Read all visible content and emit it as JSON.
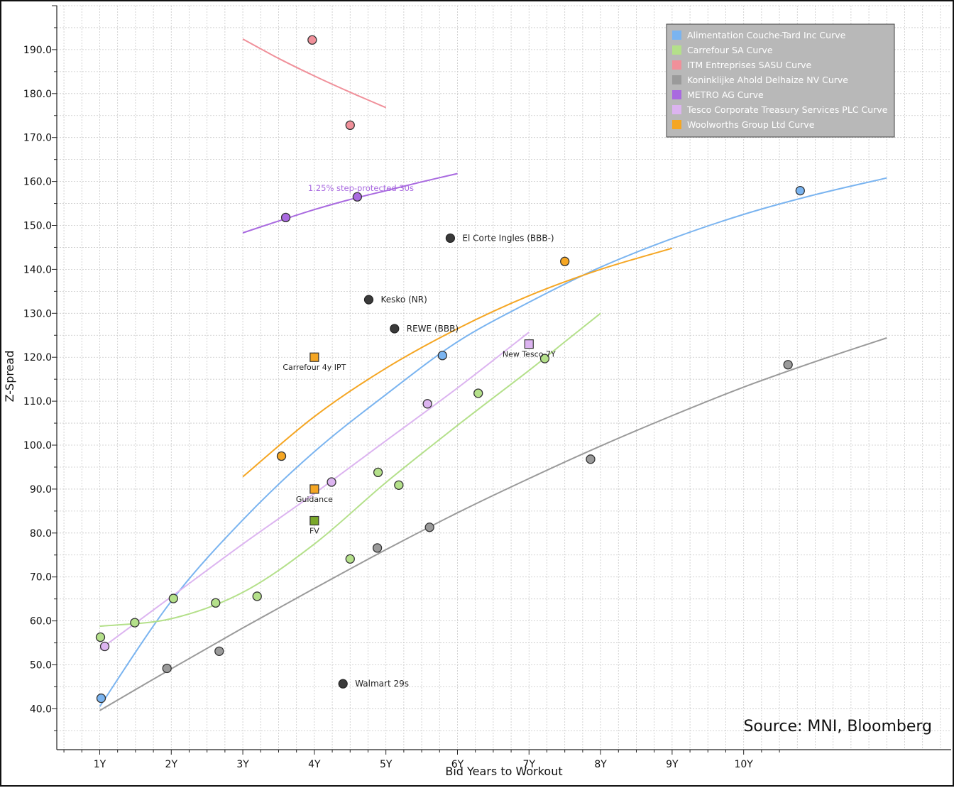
{
  "chart_data": {
    "type": "scatter",
    "title": "",
    "xlabel": "Bid Years to Workout",
    "ylabel": "Z-Spread",
    "source": "Source: MNI, Bloomberg",
    "xlim": [
      0.4,
      12.9
    ],
    "ylim": [
      30.7,
      200.0
    ],
    "x_ticks": [
      {
        "value": 1,
        "label": "1Y"
      },
      {
        "value": 2,
        "label": "2Y"
      },
      {
        "value": 3,
        "label": "3Y"
      },
      {
        "value": 4,
        "label": "4Y"
      },
      {
        "value": 5,
        "label": "5Y"
      },
      {
        "value": 6,
        "label": "6Y"
      },
      {
        "value": 7,
        "label": "7Y"
      },
      {
        "value": 8,
        "label": "8Y"
      },
      {
        "value": 9,
        "label": "9Y"
      },
      {
        "value": 10,
        "label": "10Y"
      }
    ],
    "y_ticks": [
      {
        "value": 40,
        "label": "40.0"
      },
      {
        "value": 50,
        "label": "50.0"
      },
      {
        "value": 60,
        "label": "60.0"
      },
      {
        "value": 70,
        "label": "70.0"
      },
      {
        "value": 80,
        "label": "80.0"
      },
      {
        "value": 90,
        "label": "90.0"
      },
      {
        "value": 100,
        "label": "100.0"
      },
      {
        "value": 110,
        "label": "110.0"
      },
      {
        "value": 120,
        "label": "120.0"
      },
      {
        "value": 130,
        "label": "130.0"
      },
      {
        "value": 140,
        "label": "140.0"
      },
      {
        "value": 150,
        "label": "150.0"
      },
      {
        "value": 160,
        "label": "160.0"
      },
      {
        "value": 170,
        "label": "170.0"
      },
      {
        "value": 180,
        "label": "180.0"
      },
      {
        "value": 190,
        "label": "190.0"
      }
    ],
    "grid": true,
    "legend_position": "top-right",
    "series": [
      {
        "name": "Alimentation Couche-Tard Inc Curve",
        "color": "#7ab4f0",
        "points": [
          {
            "x": 1.02,
            "y": 42.4
          },
          {
            "x": 5.79,
            "y": 120.4
          },
          {
            "x": 10.79,
            "y": 157.9
          }
        ],
        "curve": [
          {
            "x": 1.0,
            "y": 40.5
          },
          {
            "x": 2.0,
            "y": 64.5
          },
          {
            "x": 3.0,
            "y": 83.0
          },
          {
            "x": 4.0,
            "y": 98.5
          },
          {
            "x": 5.0,
            "y": 111.5
          },
          {
            "x": 6.0,
            "y": 123.5
          },
          {
            "x": 7.0,
            "y": 132.5
          },
          {
            "x": 8.0,
            "y": 140.5
          },
          {
            "x": 9.0,
            "y": 147.0
          },
          {
            "x": 10.0,
            "y": 152.5
          },
          {
            "x": 11.0,
            "y": 157.0
          },
          {
            "x": 12.0,
            "y": 160.8
          }
        ]
      },
      {
        "name": "Carrefour SA Curve",
        "color": "#b4e08a",
        "points": [
          {
            "x": 1.01,
            "y": 56.3
          },
          {
            "x": 1.49,
            "y": 59.6
          },
          {
            "x": 2.03,
            "y": 65.1
          },
          {
            "x": 2.62,
            "y": 64.1
          },
          {
            "x": 3.2,
            "y": 65.6
          },
          {
            "x": 4.5,
            "y": 74.1
          },
          {
            "x": 4.89,
            "y": 93.8
          },
          {
            "x": 5.18,
            "y": 90.9
          },
          {
            "x": 6.29,
            "y": 111.8
          },
          {
            "x": 7.22,
            "y": 119.7
          }
        ],
        "curve": [
          {
            "x": 1.0,
            "y": 58.8
          },
          {
            "x": 2.0,
            "y": 60.5
          },
          {
            "x": 3.0,
            "y": 66.5
          },
          {
            "x": 4.0,
            "y": 77.5
          },
          {
            "x": 5.0,
            "y": 91.5
          },
          {
            "x": 6.0,
            "y": 104.5
          },
          {
            "x": 7.0,
            "y": 117.0
          },
          {
            "x": 7.5,
            "y": 123.5
          },
          {
            "x": 8.0,
            "y": 130.0
          }
        ]
      },
      {
        "name": "ITM Entreprises SASU Curve",
        "color": "#f0909a",
        "points": [
          {
            "x": 3.97,
            "y": 192.2
          },
          {
            "x": 4.5,
            "y": 172.8
          }
        ],
        "curve": [
          {
            "x": 3.0,
            "y": 192.4
          },
          {
            "x": 3.5,
            "y": 188.0
          },
          {
            "x": 4.0,
            "y": 184.0
          },
          {
            "x": 4.5,
            "y": 180.3
          },
          {
            "x": 5.0,
            "y": 176.8
          }
        ]
      },
      {
        "name": "Koninklijke Ahold Delhaize NV Curve",
        "color": "#9a9a9a",
        "points": [
          {
            "x": 1.94,
            "y": 49.2
          },
          {
            "x": 2.67,
            "y": 53.1
          },
          {
            "x": 4.88,
            "y": 76.6
          },
          {
            "x": 5.61,
            "y": 81.3
          },
          {
            "x": 7.86,
            "y": 96.8
          },
          {
            "x": 10.62,
            "y": 118.3
          }
        ],
        "curve": [
          {
            "x": 1.0,
            "y": 39.6
          },
          {
            "x": 2.0,
            "y": 49.1
          },
          {
            "x": 3.0,
            "y": 58.4
          },
          {
            "x": 4.0,
            "y": 67.4
          },
          {
            "x": 5.0,
            "y": 76.2
          },
          {
            "x": 6.0,
            "y": 84.6
          },
          {
            "x": 7.0,
            "y": 92.4
          },
          {
            "x": 8.0,
            "y": 99.8
          },
          {
            "x": 9.0,
            "y": 106.7
          },
          {
            "x": 10.0,
            "y": 113.2
          },
          {
            "x": 11.0,
            "y": 119.0
          },
          {
            "x": 12.0,
            "y": 124.4
          }
        ]
      },
      {
        "name": "METRO AG Curve",
        "color": "#a96ae0",
        "points": [
          {
            "x": 3.6,
            "y": 151.8
          },
          {
            "x": 4.6,
            "y": 156.5
          }
        ],
        "curve": [
          {
            "x": 3.0,
            "y": 148.3
          },
          {
            "x": 3.5,
            "y": 151.0
          },
          {
            "x": 4.0,
            "y": 153.6
          },
          {
            "x": 4.5,
            "y": 155.9
          },
          {
            "x": 5.0,
            "y": 157.9
          },
          {
            "x": 5.5,
            "y": 159.9
          },
          {
            "x": 6.0,
            "y": 161.8
          }
        ]
      },
      {
        "name": "Tesco Corporate Treasury Services PLC Curve",
        "color": "#dcb4f0",
        "points": [
          {
            "x": 1.07,
            "y": 54.2
          },
          {
            "x": 4.24,
            "y": 91.6
          },
          {
            "x": 5.58,
            "y": 109.4
          }
        ],
        "curve": [
          {
            "x": 1.0,
            "y": 53.5
          },
          {
            "x": 2.0,
            "y": 65.5
          },
          {
            "x": 3.0,
            "y": 77.5
          },
          {
            "x": 4.0,
            "y": 89.0
          },
          {
            "x": 5.0,
            "y": 101.0
          },
          {
            "x": 6.0,
            "y": 113.0
          },
          {
            "x": 7.0,
            "y": 125.7
          }
        ]
      },
      {
        "name": "Woolworths Group Ltd Curve",
        "color": "#f5a623",
        "points": [
          {
            "x": 3.54,
            "y": 97.5
          },
          {
            "x": 7.5,
            "y": 141.8
          }
        ],
        "curve": [
          {
            "x": 3.0,
            "y": 92.8
          },
          {
            "x": 4.0,
            "y": 106.5
          },
          {
            "x": 5.0,
            "y": 117.5
          },
          {
            "x": 6.0,
            "y": 126.5
          },
          {
            "x": 7.0,
            "y": 134.0
          },
          {
            "x": 8.0,
            "y": 140.0
          },
          {
            "x": 9.0,
            "y": 144.8
          }
        ]
      }
    ],
    "other_points": [
      {
        "label": "El Corte Ingles (BBB-)",
        "x": 5.9,
        "y": 147.1,
        "color": "#3a3a3a"
      },
      {
        "label": "Kesko (NR)",
        "x": 4.76,
        "y": 133.1,
        "color": "#3a3a3a"
      },
      {
        "label": "REWE (BBB)",
        "x": 5.12,
        "y": 126.5,
        "color": "#3a3a3a"
      },
      {
        "label": "Walmart 29s",
        "x": 4.4,
        "y": 45.7,
        "color": "#3a3a3a"
      }
    ],
    "square_markers": [
      {
        "label": "Carrefour 4y IPT",
        "x": 4.0,
        "y": 120.0,
        "color": "#f5a623"
      },
      {
        "label": "Guidance",
        "x": 4.0,
        "y": 90.0,
        "color": "#f5a623"
      },
      {
        "label": "FV",
        "x": 4.0,
        "y": 82.8,
        "color": "#7aa82a"
      },
      {
        "label": "New Tesco 7Y",
        "x": 7.0,
        "y": 123.0,
        "color": "#dcb4f0"
      }
    ],
    "annotations": [
      {
        "text": "1.25% step-protected 30s",
        "x": 4.65,
        "y": 158.5,
        "color": "#a96ae0"
      }
    ]
  }
}
